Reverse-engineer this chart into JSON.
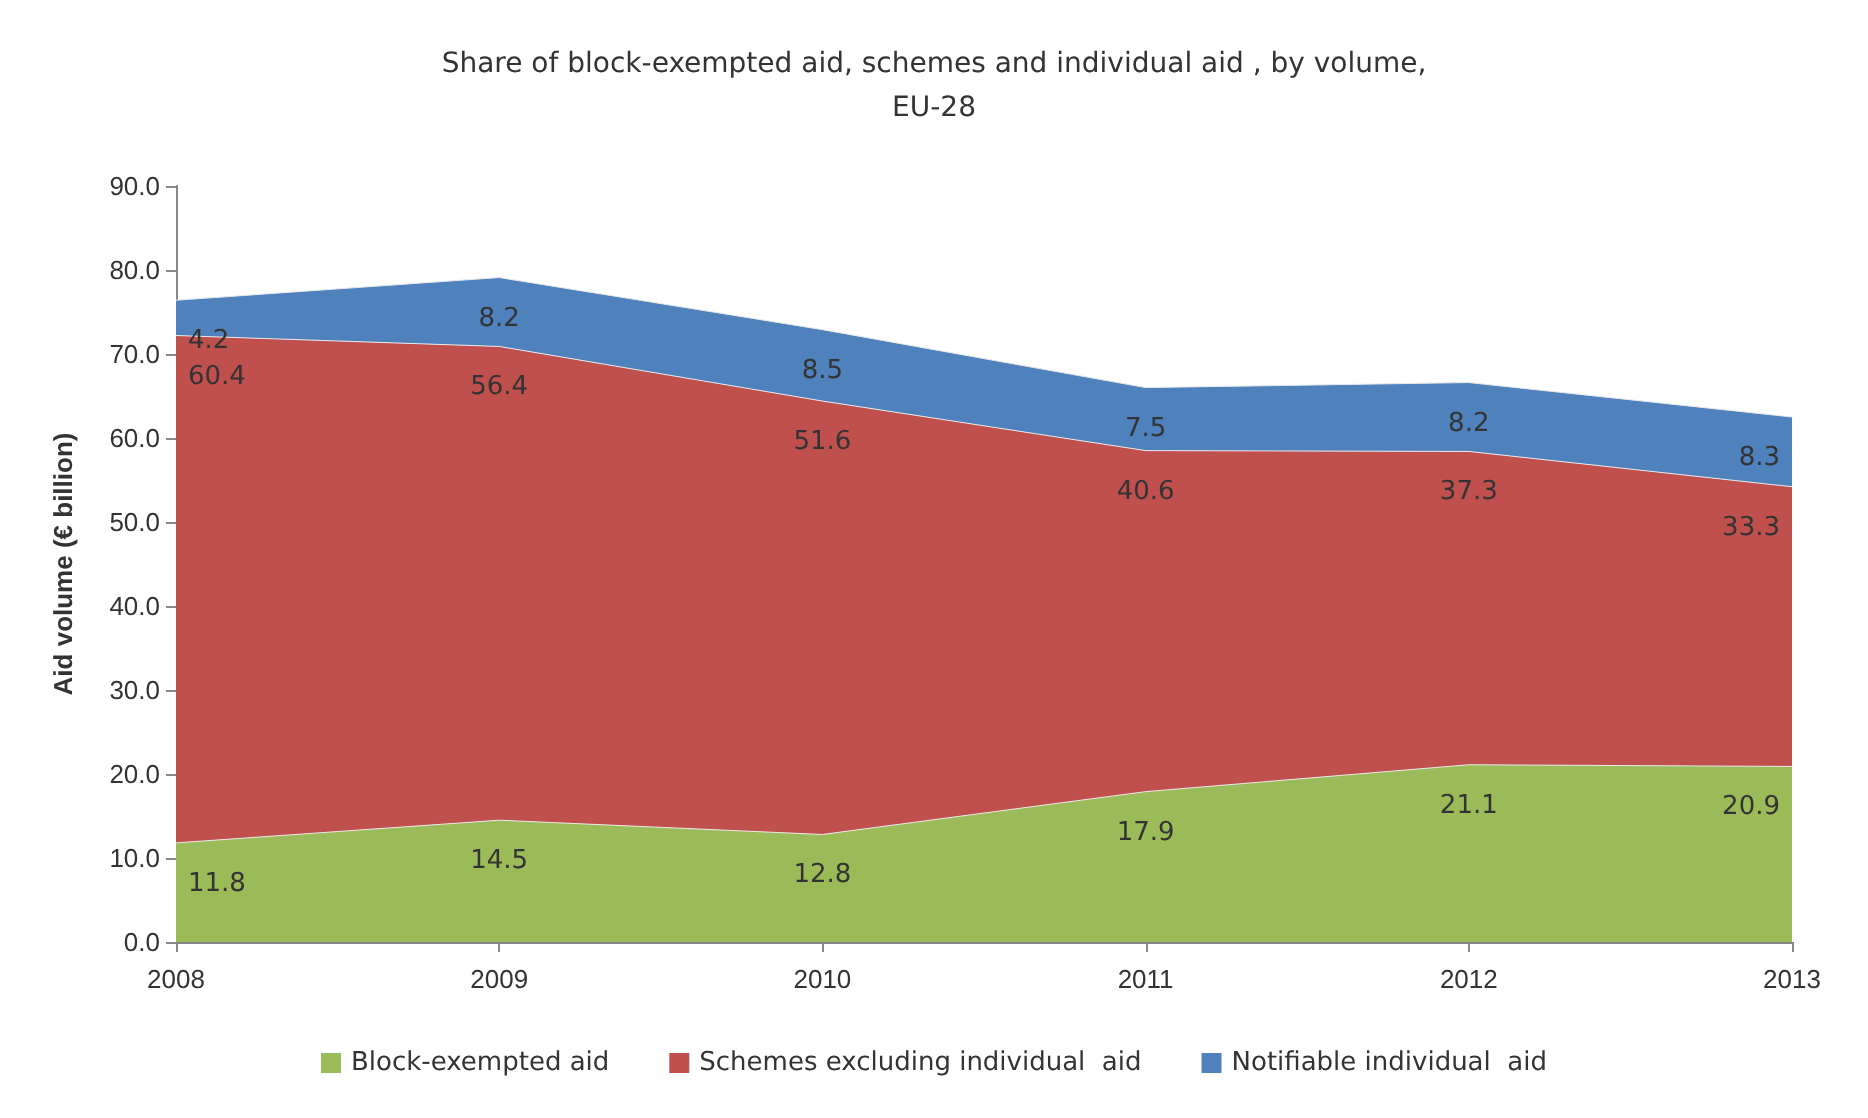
{
  "chart_data": {
    "type": "area",
    "title": "Share of block-exempted aid, schemes and individual aid , by volume,\nEU-28",
    "ylabel": "Aid volume (€ billion)",
    "categories": [
      "2008",
      "2009",
      "2010",
      "2011",
      "2012",
      "2013"
    ],
    "stacked": true,
    "data_labels": true,
    "legend": "bottom",
    "grid": false,
    "ylim": [
      0,
      90
    ],
    "yticks": [
      {
        "value": 0,
        "label": "0.0"
      },
      {
        "value": 10,
        "label": "10.0"
      },
      {
        "value": 20,
        "label": "20.0"
      },
      {
        "value": 30,
        "label": "30.0"
      },
      {
        "value": 40,
        "label": "40.0"
      },
      {
        "value": 50,
        "label": "50.0"
      },
      {
        "value": 60,
        "label": "60.0"
      },
      {
        "value": 70,
        "label": "70.0"
      },
      {
        "value": 80,
        "label": "80.0"
      },
      {
        "value": 90,
        "label": "90.0"
      }
    ],
    "series": [
      {
        "name": "Block-exempted aid",
        "color": "#9bbb59",
        "values": [
          11.8,
          14.5,
          12.8,
          17.9,
          21.1,
          20.9
        ]
      },
      {
        "name": "Schemes excluding individual  aid",
        "color": "#c0504d",
        "values": [
          60.4,
          56.4,
          51.6,
          40.6,
          37.3,
          33.3
        ]
      },
      {
        "name": "Notifiable individual  aid",
        "color": "#4f81bd",
        "values": [
          4.2,
          8.2,
          8.5,
          7.5,
          8.2,
          8.3
        ]
      }
    ]
  }
}
